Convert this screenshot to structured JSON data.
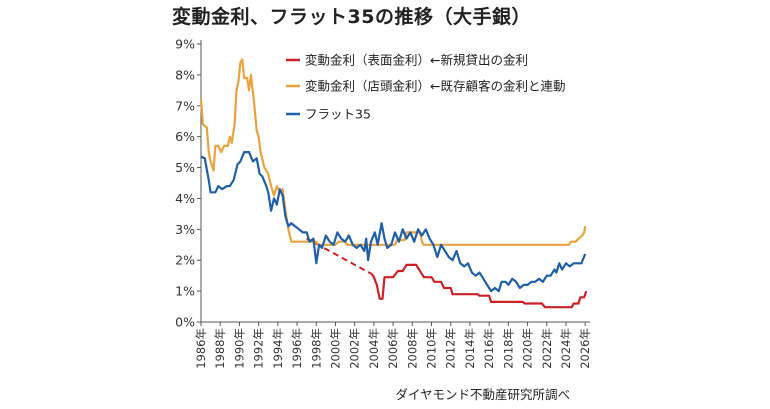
{
  "page": {
    "title": "変動金利、フラット35の推移（大手銀）",
    "source": "ダイヤモンド不動産研究所調べ"
  },
  "chart_data": {
    "type": "line",
    "title": "変動金利、フラット35の推移（大手銀）",
    "xlabel": "",
    "ylabel": "",
    "xlim": [
      1986,
      2026.5
    ],
    "ylim": [
      0,
      9
    ],
    "y_ticks": [
      0,
      1,
      2,
      3,
      4,
      5,
      6,
      7,
      8,
      9
    ],
    "y_tick_labels": [
      "0%",
      "1%",
      "2%",
      "3%",
      "4%",
      "5%",
      "6%",
      "7%",
      "8%",
      "9%"
    ],
    "x_ticks": [
      1986,
      1988,
      1990,
      1992,
      1994,
      1996,
      1998,
      2000,
      2002,
      2004,
      2006,
      2008,
      2010,
      2012,
      2014,
      2016,
      2018,
      2020,
      2022,
      2024,
      2026
    ],
    "x_tick_labels": [
      "1986年",
      "1988年",
      "1990年",
      "1992年",
      "1994年",
      "1996年",
      "1998年",
      "2000年",
      "2002年",
      "2004年",
      "2006年",
      "2008年",
      "2010年",
      "2012年",
      "2014年",
      "2016年",
      "2018年",
      "2020年",
      "2022年",
      "2024年",
      "2026年"
    ],
    "grid": false,
    "legend_position": "top-center",
    "series": [
      {
        "name": "変動金利（表面金利）←新規貸出の金利",
        "color": "#cc2027",
        "dashed_segment": [
          [
            1997.0,
            2.7
          ],
          [
            2003.8,
            1.55
          ]
        ],
        "points": [
          [
            2003.8,
            1.55
          ],
          [
            2004.0,
            1.45
          ],
          [
            2004.3,
            1.2
          ],
          [
            2004.6,
            0.75
          ],
          [
            2004.9,
            0.75
          ],
          [
            2005.1,
            1.45
          ],
          [
            2006.0,
            1.45
          ],
          [
            2006.5,
            1.65
          ],
          [
            2007.0,
            1.65
          ],
          [
            2007.4,
            1.85
          ],
          [
            2008.4,
            1.85
          ],
          [
            2008.9,
            1.6
          ],
          [
            2009.2,
            1.45
          ],
          [
            2010.0,
            1.45
          ],
          [
            2010.3,
            1.3
          ],
          [
            2011.0,
            1.3
          ],
          [
            2011.3,
            1.1
          ],
          [
            2012.0,
            1.1
          ],
          [
            2012.2,
            0.9
          ],
          [
            2014.8,
            0.9
          ],
          [
            2015.0,
            0.85
          ],
          [
            2016.0,
            0.85
          ],
          [
            2016.2,
            0.65
          ],
          [
            2019.5,
            0.65
          ],
          [
            2019.7,
            0.6
          ],
          [
            2021.5,
            0.6
          ],
          [
            2021.8,
            0.48
          ],
          [
            2024.6,
            0.48
          ],
          [
            2024.8,
            0.6
          ],
          [
            2025.3,
            0.6
          ],
          [
            2025.5,
            0.8
          ],
          [
            2025.9,
            0.8
          ],
          [
            2026.1,
            1.0
          ]
        ]
      },
      {
        "name": "変動金利（店頭金利）←既存顧客の金利と連動",
        "color": "#e8a33d",
        "points": [
          [
            1986.0,
            7.2
          ],
          [
            1986.2,
            6.4
          ],
          [
            1986.6,
            6.3
          ],
          [
            1986.8,
            5.5
          ],
          [
            1987.0,
            5.2
          ],
          [
            1987.3,
            4.9
          ],
          [
            1987.5,
            5.7
          ],
          [
            1987.8,
            5.7
          ],
          [
            1988.1,
            5.5
          ],
          [
            1988.4,
            5.7
          ],
          [
            1988.8,
            5.7
          ],
          [
            1989.0,
            6.0
          ],
          [
            1989.2,
            5.8
          ],
          [
            1989.5,
            6.4
          ],
          [
            1989.7,
            7.5
          ],
          [
            1989.9,
            7.8
          ],
          [
            1990.1,
            8.4
          ],
          [
            1990.3,
            8.5
          ],
          [
            1990.5,
            7.9
          ],
          [
            1990.8,
            7.9
          ],
          [
            1991.0,
            7.5
          ],
          [
            1991.2,
            8.0
          ],
          [
            1991.5,
            7.2
          ],
          [
            1991.8,
            6.2
          ],
          [
            1992.0,
            6.0
          ],
          [
            1992.2,
            5.5
          ],
          [
            1992.6,
            5.0
          ],
          [
            1993.0,
            4.8
          ],
          [
            1993.3,
            4.4
          ],
          [
            1993.6,
            4.1
          ],
          [
            1993.9,
            4.4
          ],
          [
            1994.2,
            4.2
          ],
          [
            1994.5,
            4.3
          ],
          [
            1994.8,
            3.6
          ],
          [
            1995.1,
            3.0
          ],
          [
            1995.4,
            2.6
          ],
          [
            1998.0,
            2.6
          ],
          [
            1998.2,
            2.5
          ],
          [
            2000.0,
            2.5
          ],
          [
            2000.3,
            2.6
          ],
          [
            2001.0,
            2.6
          ],
          [
            2001.2,
            2.5
          ],
          [
            2006.2,
            2.5
          ],
          [
            2006.4,
            2.65
          ],
          [
            2007.2,
            2.65
          ],
          [
            2007.4,
            2.9
          ],
          [
            2008.8,
            2.9
          ],
          [
            2009.0,
            2.6
          ],
          [
            2009.2,
            2.5
          ],
          [
            2023.5,
            2.5
          ],
          [
            2024.3,
            2.5
          ],
          [
            2024.5,
            2.6
          ],
          [
            2025.0,
            2.6
          ],
          [
            2025.3,
            2.7
          ],
          [
            2025.7,
            2.8
          ],
          [
            2025.9,
            2.9
          ],
          [
            2026.0,
            3.1
          ]
        ]
      },
      {
        "name": "フラット35",
        "color": "#1f5fa8",
        "points": [
          [
            1986.0,
            5.35
          ],
          [
            1986.4,
            5.3
          ],
          [
            1986.8,
            4.6
          ],
          [
            1987.0,
            4.2
          ],
          [
            1987.5,
            4.2
          ],
          [
            1987.8,
            4.4
          ],
          [
            1988.2,
            4.3
          ],
          [
            1988.7,
            4.4
          ],
          [
            1989.0,
            4.4
          ],
          [
            1989.4,
            4.6
          ],
          [
            1989.8,
            5.1
          ],
          [
            1990.1,
            5.2
          ],
          [
            1990.5,
            5.5
          ],
          [
            1991.0,
            5.5
          ],
          [
            1991.4,
            5.2
          ],
          [
            1991.8,
            5.3
          ],
          [
            1992.1,
            4.8
          ],
          [
            1992.4,
            4.7
          ],
          [
            1992.8,
            4.4
          ],
          [
            1993.0,
            4.2
          ],
          [
            1993.3,
            3.6
          ],
          [
            1993.6,
            4.0
          ],
          [
            1993.9,
            3.8
          ],
          [
            1994.2,
            4.3
          ],
          [
            1994.5,
            4.1
          ],
          [
            1994.8,
            3.4
          ],
          [
            1995.1,
            3.1
          ],
          [
            1995.4,
            3.2
          ],
          [
            1995.8,
            3.1
          ],
          [
            1996.2,
            3.0
          ],
          [
            1996.6,
            2.9
          ],
          [
            1997.0,
            2.9
          ],
          [
            1997.3,
            2.6
          ],
          [
            1997.7,
            2.7
          ],
          [
            1998.0,
            1.9
          ],
          [
            1998.3,
            2.5
          ],
          [
            1998.6,
            2.4
          ],
          [
            1999.0,
            2.8
          ],
          [
            1999.4,
            2.6
          ],
          [
            1999.8,
            2.5
          ],
          [
            2000.2,
            2.9
          ],
          [
            2000.6,
            2.7
          ],
          [
            2001.0,
            2.6
          ],
          [
            2001.4,
            2.8
          ],
          [
            2001.8,
            2.5
          ],
          [
            2002.2,
            2.4
          ],
          [
            2002.6,
            2.5
          ],
          [
            2003.0,
            2.3
          ],
          [
            2003.2,
            2.7
          ],
          [
            2003.4,
            2.0
          ],
          [
            2003.7,
            2.6
          ],
          [
            2004.1,
            2.9
          ],
          [
            2004.4,
            2.5
          ],
          [
            2004.8,
            3.2
          ],
          [
            2005.1,
            2.7
          ],
          [
            2005.4,
            2.4
          ],
          [
            2005.8,
            2.5
          ],
          [
            2006.2,
            2.9
          ],
          [
            2006.6,
            2.6
          ],
          [
            2007.0,
            3.0
          ],
          [
            2007.4,
            2.7
          ],
          [
            2007.8,
            2.9
          ],
          [
            2008.2,
            2.6
          ],
          [
            2008.6,
            3.0
          ],
          [
            2009.0,
            2.8
          ],
          [
            2009.4,
            3.0
          ],
          [
            2009.8,
            2.7
          ],
          [
            2010.2,
            2.5
          ],
          [
            2010.6,
            2.1
          ],
          [
            2011.0,
            2.5
          ],
          [
            2011.4,
            2.3
          ],
          [
            2011.8,
            2.1
          ],
          [
            2012.2,
            2.0
          ],
          [
            2012.6,
            2.3
          ],
          [
            2013.0,
            1.9
          ],
          [
            2013.4,
            1.8
          ],
          [
            2013.8,
            1.9
          ],
          [
            2014.2,
            1.6
          ],
          [
            2014.6,
            1.5
          ],
          [
            2015.0,
            1.6
          ],
          [
            2015.4,
            1.4
          ],
          [
            2015.8,
            1.2
          ],
          [
            2016.2,
            1.0
          ],
          [
            2016.6,
            1.1
          ],
          [
            2017.0,
            1.0
          ],
          [
            2017.3,
            1.3
          ],
          [
            2017.7,
            1.3
          ],
          [
            2018.0,
            1.2
          ],
          [
            2018.4,
            1.4
          ],
          [
            2018.8,
            1.3
          ],
          [
            2019.2,
            1.1
          ],
          [
            2019.6,
            1.2
          ],
          [
            2020.0,
            1.2
          ],
          [
            2020.4,
            1.3
          ],
          [
            2020.8,
            1.3
          ],
          [
            2021.2,
            1.4
          ],
          [
            2021.6,
            1.3
          ],
          [
            2022.0,
            1.5
          ],
          [
            2022.4,
            1.5
          ],
          [
            2022.8,
            1.7
          ],
          [
            2023.0,
            1.6
          ],
          [
            2023.3,
            1.9
          ],
          [
            2023.6,
            1.7
          ],
          [
            2024.0,
            1.9
          ],
          [
            2024.4,
            1.8
          ],
          [
            2024.8,
            1.9
          ],
          [
            2025.2,
            1.9
          ],
          [
            2025.6,
            1.9
          ],
          [
            2026.0,
            2.2
          ]
        ]
      }
    ]
  }
}
